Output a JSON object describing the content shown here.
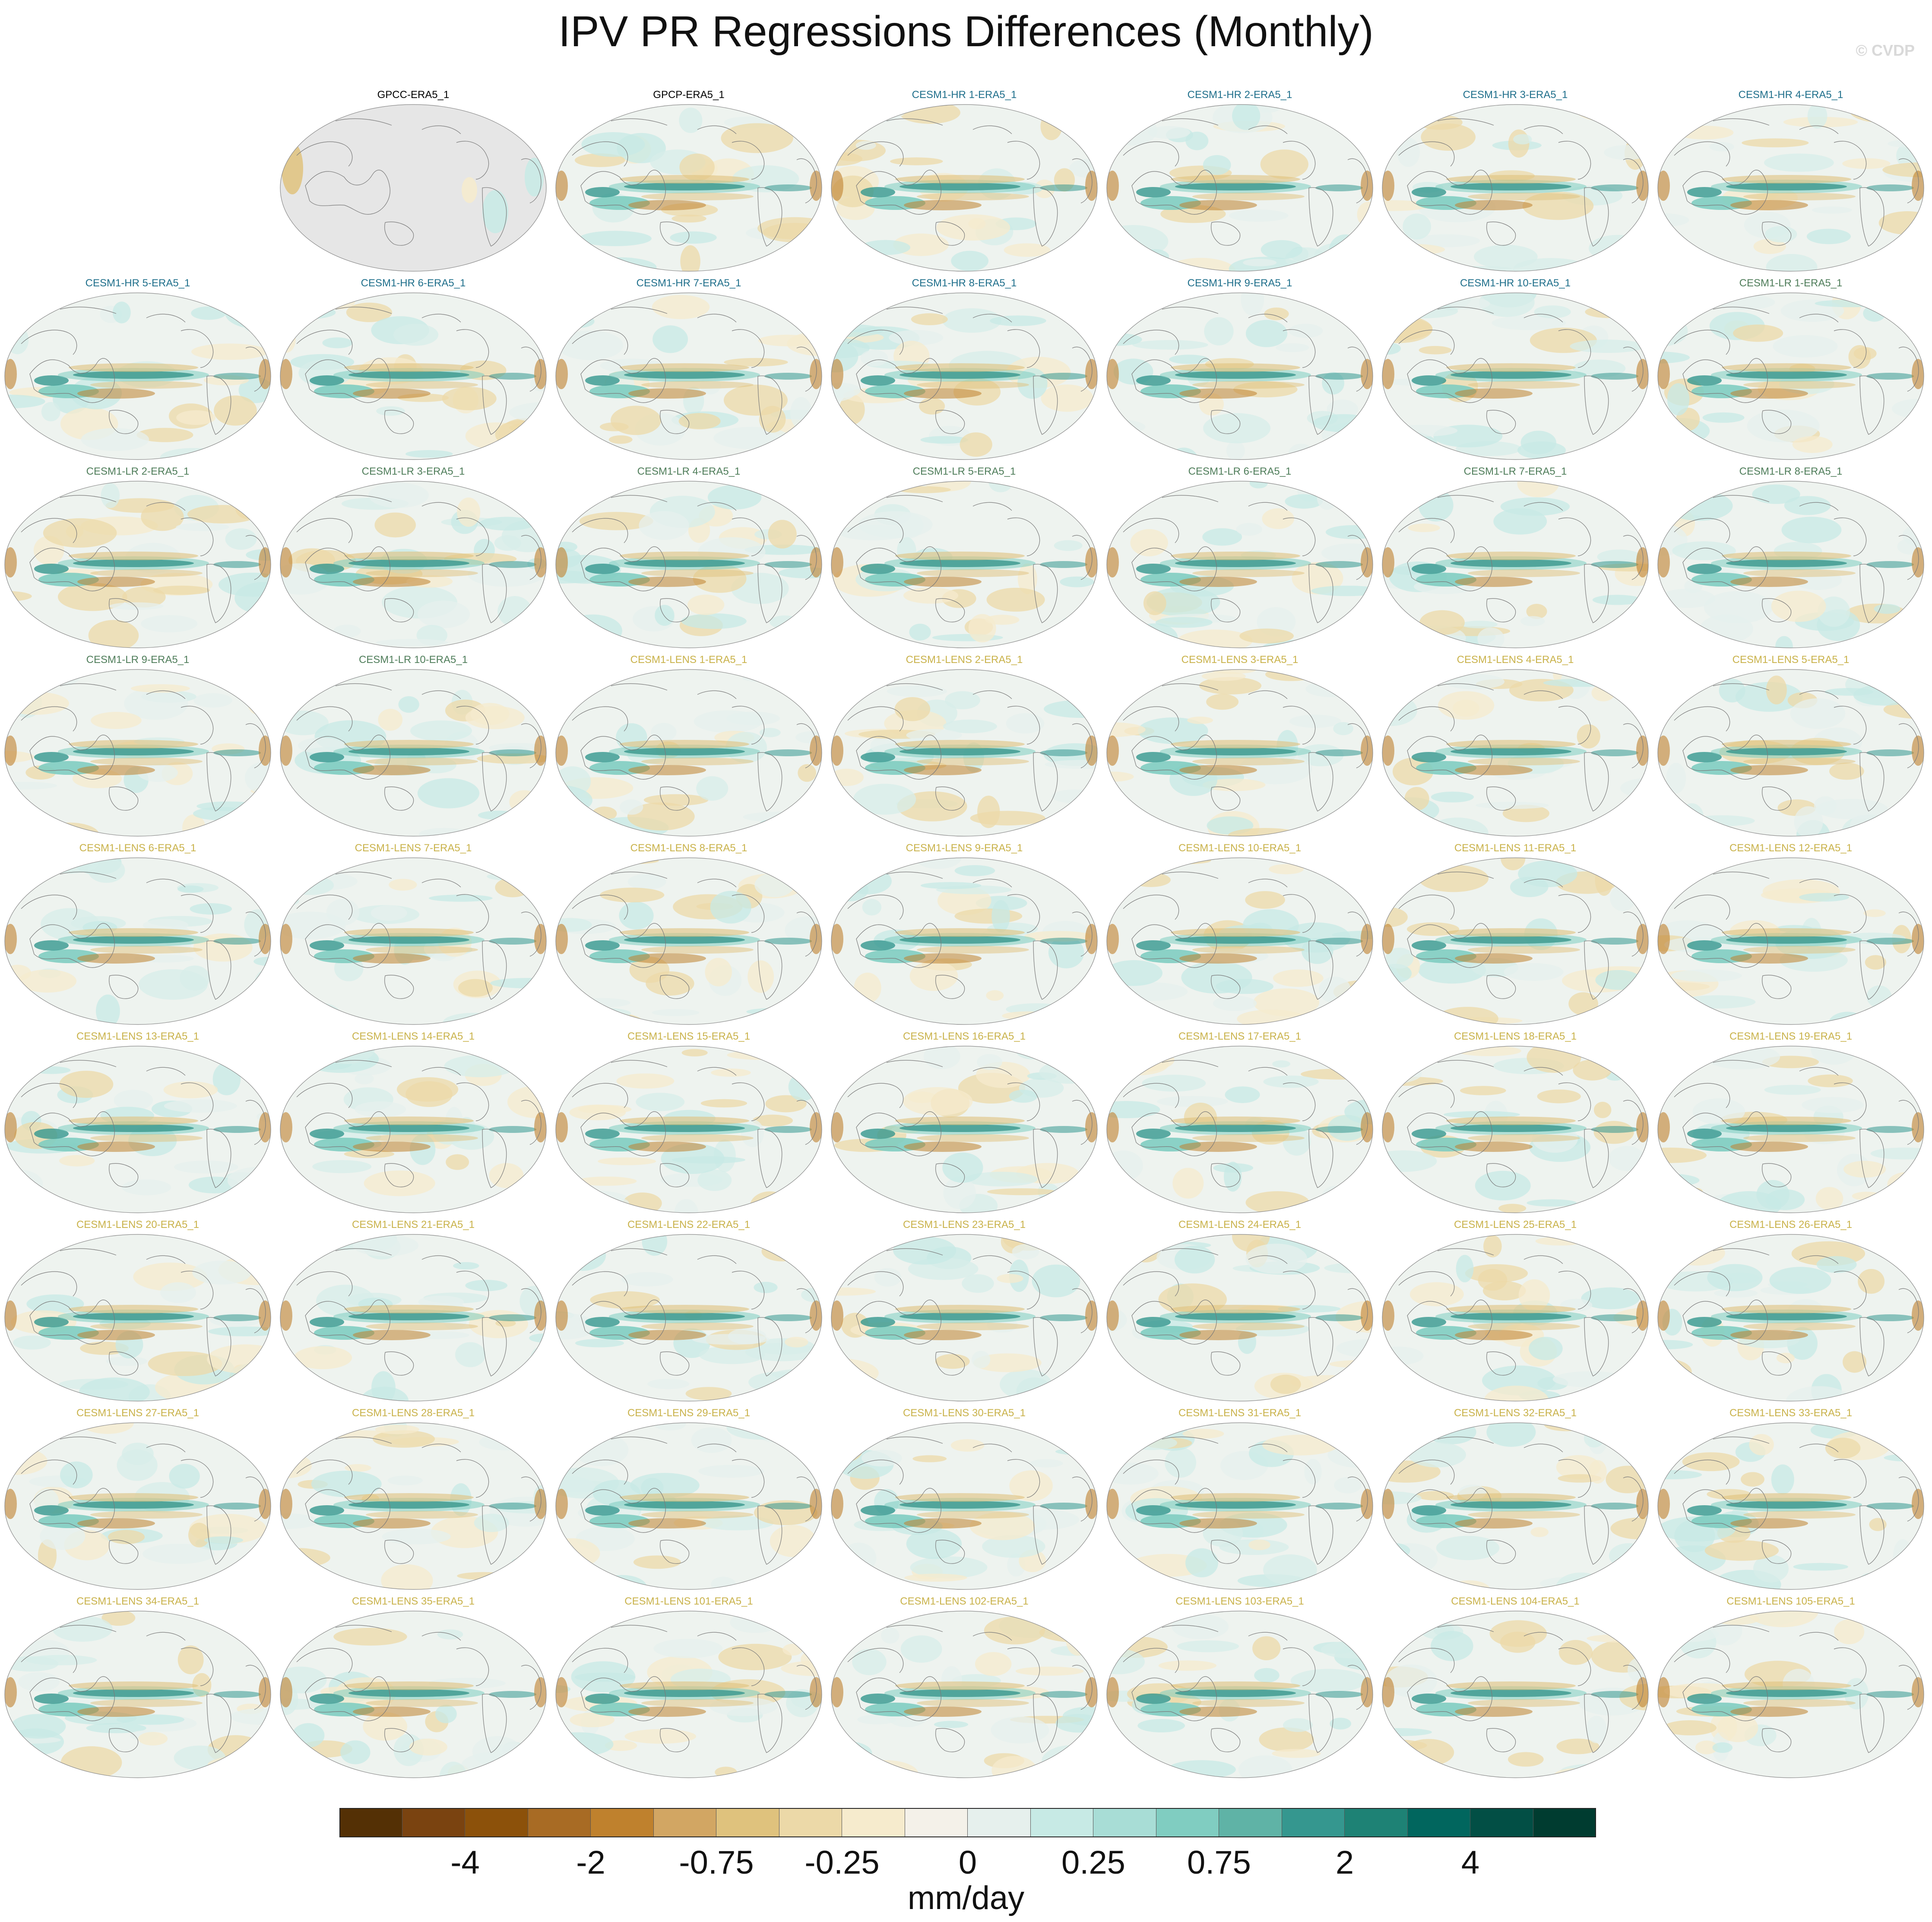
{
  "title": "IPV PR Regressions Differences (Monthly)",
  "watermark": "© CVDP",
  "colors": {
    "obs_label": "#000000",
    "hr_label": "#1f6f8b",
    "lr_label": "#4f7d5a",
    "lens_label": "#c9b24a",
    "land_mask": "#e6e6e6",
    "coastline": "#7a7a7a"
  },
  "panels": [
    {
      "label": "GPCC-ERA5_1",
      "group": "obs",
      "masked": true
    },
    {
      "label": "GPCP-ERA5_1",
      "group": "obs"
    },
    {
      "label": "CESM1-HR 1-ERA5_1",
      "group": "hr"
    },
    {
      "label": "CESM1-HR 2-ERA5_1",
      "group": "hr"
    },
    {
      "label": "CESM1-HR 3-ERA5_1",
      "group": "hr"
    },
    {
      "label": "CESM1-HR 4-ERA5_1",
      "group": "hr"
    },
    {
      "label": "CESM1-HR 5-ERA5_1",
      "group": "hr"
    },
    {
      "label": "CESM1-HR 6-ERA5_1",
      "group": "hr"
    },
    {
      "label": "CESM1-HR 7-ERA5_1",
      "group": "hr"
    },
    {
      "label": "CESM1-HR 8-ERA5_1",
      "group": "hr"
    },
    {
      "label": "CESM1-HR 9-ERA5_1",
      "group": "hr"
    },
    {
      "label": "CESM1-HR 10-ERA5_1",
      "group": "hr"
    },
    {
      "label": "CESM1-LR 1-ERA5_1",
      "group": "lr"
    },
    {
      "label": "CESM1-LR 2-ERA5_1",
      "group": "lr"
    },
    {
      "label": "CESM1-LR 3-ERA5_1",
      "group": "lr"
    },
    {
      "label": "CESM1-LR 4-ERA5_1",
      "group": "lr"
    },
    {
      "label": "CESM1-LR 5-ERA5_1",
      "group": "lr"
    },
    {
      "label": "CESM1-LR 6-ERA5_1",
      "group": "lr"
    },
    {
      "label": "CESM1-LR 7-ERA5_1",
      "group": "lr"
    },
    {
      "label": "CESM1-LR 8-ERA5_1",
      "group": "lr"
    },
    {
      "label": "CESM1-LR 9-ERA5_1",
      "group": "lr"
    },
    {
      "label": "CESM1-LR 10-ERA5_1",
      "group": "lr"
    },
    {
      "label": "CESM1-LENS 1-ERA5_1",
      "group": "lens"
    },
    {
      "label": "CESM1-LENS 2-ERA5_1",
      "group": "lens"
    },
    {
      "label": "CESM1-LENS 3-ERA5_1",
      "group": "lens"
    },
    {
      "label": "CESM1-LENS 4-ERA5_1",
      "group": "lens"
    },
    {
      "label": "CESM1-LENS 5-ERA5_1",
      "group": "lens"
    },
    {
      "label": "CESM1-LENS 6-ERA5_1",
      "group": "lens"
    },
    {
      "label": "CESM1-LENS 7-ERA5_1",
      "group": "lens"
    },
    {
      "label": "CESM1-LENS 8-ERA5_1",
      "group": "lens"
    },
    {
      "label": "CESM1-LENS 9-ERA5_1",
      "group": "lens"
    },
    {
      "label": "CESM1-LENS 10-ERA5_1",
      "group": "lens"
    },
    {
      "label": "CESM1-LENS 11-ERA5_1",
      "group": "lens"
    },
    {
      "label": "CESM1-LENS 12-ERA5_1",
      "group": "lens"
    },
    {
      "label": "CESM1-LENS 13-ERA5_1",
      "group": "lens"
    },
    {
      "label": "CESM1-LENS 14-ERA5_1",
      "group": "lens"
    },
    {
      "label": "CESM1-LENS 15-ERA5_1",
      "group": "lens"
    },
    {
      "label": "CESM1-LENS 16-ERA5_1",
      "group": "lens"
    },
    {
      "label": "CESM1-LENS 17-ERA5_1",
      "group": "lens"
    },
    {
      "label": "CESM1-LENS 18-ERA5_1",
      "group": "lens"
    },
    {
      "label": "CESM1-LENS 19-ERA5_1",
      "group": "lens"
    },
    {
      "label": "CESM1-LENS 20-ERA5_1",
      "group": "lens"
    },
    {
      "label": "CESM1-LENS 21-ERA5_1",
      "group": "lens"
    },
    {
      "label": "CESM1-LENS 22-ERA5_1",
      "group": "lens"
    },
    {
      "label": "CESM1-LENS 23-ERA5_1",
      "group": "lens"
    },
    {
      "label": "CESM1-LENS 24-ERA5_1",
      "group": "lens"
    },
    {
      "label": "CESM1-LENS 25-ERA5_1",
      "group": "lens"
    },
    {
      "label": "CESM1-LENS 26-ERA5_1",
      "group": "lens"
    },
    {
      "label": "CESM1-LENS 27-ERA5_1",
      "group": "lens"
    },
    {
      "label": "CESM1-LENS 28-ERA5_1",
      "group": "lens"
    },
    {
      "label": "CESM1-LENS 29-ERA5_1",
      "group": "lens"
    },
    {
      "label": "CESM1-LENS 30-ERA5_1",
      "group": "lens"
    },
    {
      "label": "CESM1-LENS 31-ERA5_1",
      "group": "lens"
    },
    {
      "label": "CESM1-LENS 32-ERA5_1",
      "group": "lens"
    },
    {
      "label": "CESM1-LENS 33-ERA5_1",
      "group": "lens"
    },
    {
      "label": "CESM1-LENS 34-ERA5_1",
      "group": "lens"
    },
    {
      "label": "CESM1-LENS 35-ERA5_1",
      "group": "lens"
    },
    {
      "label": "CESM1-LENS 101-ERA5_1",
      "group": "lens"
    },
    {
      "label": "CESM1-LENS 102-ERA5_1",
      "group": "lens"
    },
    {
      "label": "CESM1-LENS 103-ERA5_1",
      "group": "lens"
    },
    {
      "label": "CESM1-LENS 104-ERA5_1",
      "group": "lens"
    },
    {
      "label": "CESM1-LENS 105-ERA5_1",
      "group": "lens"
    }
  ],
  "colorbar": {
    "units": "mm/day",
    "colors": [
      "#543005",
      "#7a4310",
      "#8c510a",
      "#a86b24",
      "#bf812d",
      "#d2a663",
      "#dfc27d",
      "#ecd9a8",
      "#f6ebcd",
      "#f4f1e9",
      "#e6f0ed",
      "#c7eae5",
      "#a8ddd6",
      "#80cdc1",
      "#5fb3a6",
      "#35978f",
      "#1e8275",
      "#01665e",
      "#024f45",
      "#003c30"
    ],
    "ticks": [
      {
        "label": "-4",
        "boundary": 2
      },
      {
        "label": "-2",
        "boundary": 4
      },
      {
        "label": "-0.75",
        "boundary": 6
      },
      {
        "label": "-0.25",
        "boundary": 8
      },
      {
        "label": "0",
        "boundary": 10
      },
      {
        "label": "0.25",
        "boundary": 12
      },
      {
        "label": "0.75",
        "boundary": 14
      },
      {
        "label": "2",
        "boundary": 16
      },
      {
        "label": "4",
        "boundary": 18
      }
    ]
  }
}
